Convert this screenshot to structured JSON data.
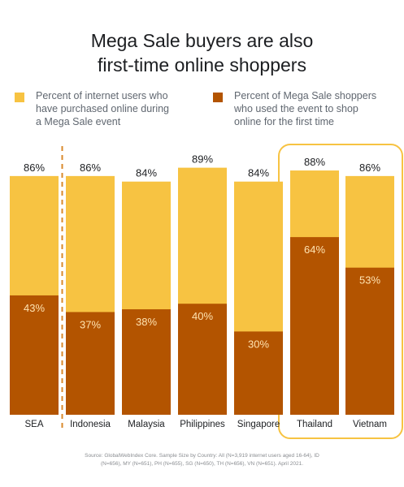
{
  "title": {
    "line1": "Mega Sale buyers are also",
    "line2": "first-time online shoppers"
  },
  "legend": [
    {
      "lines": [
        "Percent of internet users who",
        "have purchased online during",
        "a Mega Sale event"
      ],
      "color": "#f7c342"
    },
    {
      "lines": [
        "Percent of Mega Sale shoppers",
        "who used the event to shop",
        "online for the first time"
      ],
      "color": "#b35400"
    }
  ],
  "colors": {
    "light": "#f7c342",
    "dark": "#b35400",
    "highlight": "#f7c342",
    "divider": "#d9892b"
  },
  "chart_data": {
    "type": "bar",
    "categories": [
      "SEA",
      "Indonesia",
      "Malaysia",
      "Philippines",
      "Singapore",
      "Thailand",
      "Vietnam"
    ],
    "series": [
      {
        "name": "Percent of internet users who have purchased online during a Mega Sale event",
        "values": [
          86,
          86,
          84,
          89,
          84,
          88,
          86
        ]
      },
      {
        "name": "Percent of Mega Sale shoppers who used the event to shop online for the first time",
        "values": [
          43,
          37,
          38,
          40,
          30,
          64,
          53
        ]
      }
    ],
    "value_labels": {
      "total": [
        "86%",
        "86%",
        "84%",
        "89%",
        "84%",
        "88%",
        "86%"
      ],
      "inner": [
        "43%",
        "37%",
        "38%",
        "40%",
        "30%",
        "64%",
        "53%"
      ]
    },
    "overlapping": true,
    "highlighted_categories": [
      "Thailand",
      "Vietnam"
    ],
    "divider_after": "SEA",
    "ylim": [
      0,
      100
    ]
  },
  "source": {
    "line1": "Source: GlobalWebIndex Core. Sample Size by Country: All (N=3,919 internet users aged 16-64), ID",
    "line2": "(N=656), MY (N=651), PH (N=655), SG (N=650), TH (N=656), VN (N=651). April 2021."
  }
}
